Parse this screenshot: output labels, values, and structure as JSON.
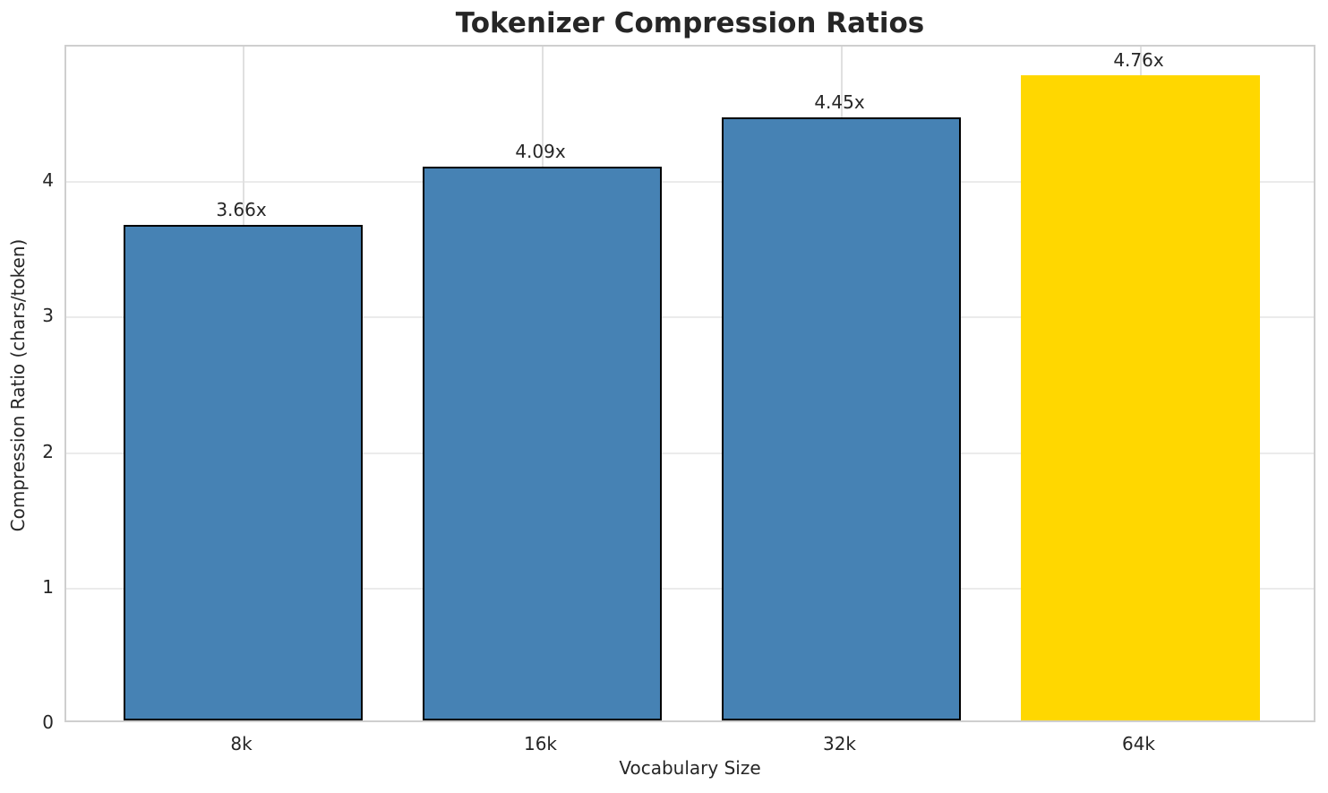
{
  "title": "Tokenizer Compression Ratios",
  "chart_data": {
    "type": "bar",
    "title": "Tokenizer Compression Ratios",
    "xlabel": "Vocabulary Size",
    "ylabel": "Compression Ratio (chars/token)",
    "categories": [
      "8k",
      "16k",
      "32k",
      "64k"
    ],
    "values": [
      3.66,
      4.09,
      4.45,
      4.76
    ],
    "value_labels": [
      "3.66x",
      "4.09x",
      "4.45x",
      "4.76x"
    ],
    "ylim": [
      0,
      5
    ],
    "yticks": [
      0,
      1,
      2,
      3,
      4
    ],
    "grid": true,
    "legend": "none",
    "bar_colors": [
      "#4682B4",
      "#4682B4",
      "#4682B4",
      "#FFD700"
    ],
    "bar_edge_colors": [
      "#000000",
      "#000000",
      "#000000",
      "none"
    ],
    "base_color": "#4682B4",
    "highlight_color": "#FFD700"
  },
  "colors": {
    "text": "#262626",
    "grid": "#ebebeb",
    "spine": "#cfcfcf",
    "background": "#ffffff"
  }
}
